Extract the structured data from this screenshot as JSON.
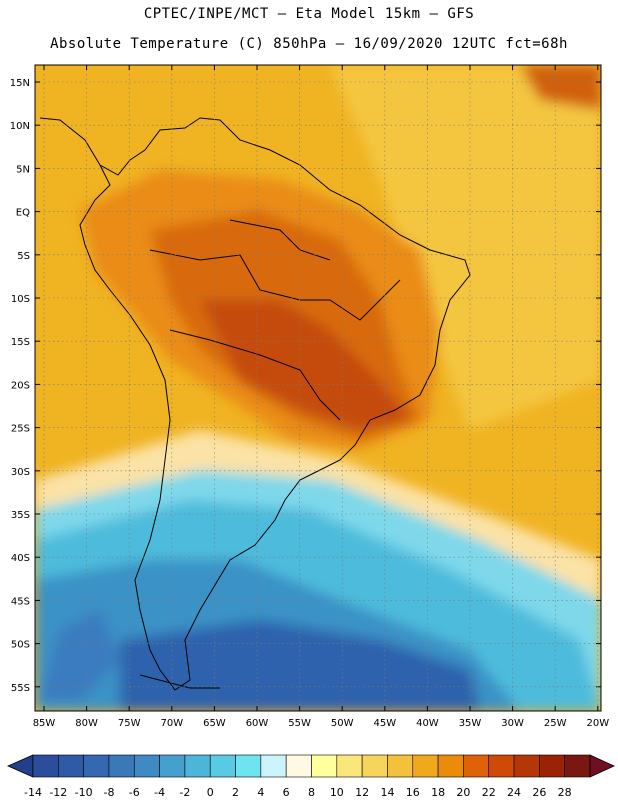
{
  "title_line1": "CPTEC/INPE/MCT –  Eta Model 15km – GFS",
  "title_line2": "Absolute Temperature (C) 850hPa – 16/09/2020 12UTC fct=68h",
  "lat_labels": [
    "15N",
    "10N",
    "5N",
    "EQ",
    "5S",
    "10S",
    "15S",
    "20S",
    "25S",
    "30S",
    "35S",
    "40S",
    "45S",
    "50S",
    "55S"
  ],
  "lon_labels": [
    "85W",
    "80W",
    "75W",
    "70W",
    "65W",
    "60W",
    "55W",
    "50W",
    "45W",
    "40W",
    "35W",
    "30W",
    "25W",
    "20W"
  ],
  "colorbar": {
    "labels": [
      "-14",
      "-12",
      "-10",
      "-8",
      "-6",
      "-4",
      "-2",
      "0",
      "2",
      "4",
      "6",
      "8",
      "10",
      "12",
      "14",
      "16",
      "18",
      "20",
      "22",
      "24",
      "26",
      "28"
    ],
    "colors": [
      "#2a4d9c",
      "#2f5aa6",
      "#3468b0",
      "#3a78ba",
      "#3f8ac3",
      "#45a0cd",
      "#4db6d8",
      "#58cbe4",
      "#6ee4ef",
      "#cdf4fb",
      "#fff9e2",
      "#ffff9e",
      "#fbe67a",
      "#f7d45a",
      "#f3c13c",
      "#efa91a",
      "#eb8b08",
      "#e06206",
      "#cf4a06",
      "#b53606",
      "#9a2306",
      "#7a1710"
    ],
    "low_color": "#233e8a",
    "high_color": "#6e0f22"
  },
  "colors": {
    "warm_band_a": "#f3b120",
    "warm_band_b": "#ee9612",
    "hot_core": "#dd6a0c",
    "hottest": "#c2470a",
    "cool_transition": "#fde8b8",
    "cold_ocean": "#5bc5e0",
    "coldest": "#2f62ad",
    "land_outline": "#000000"
  }
}
